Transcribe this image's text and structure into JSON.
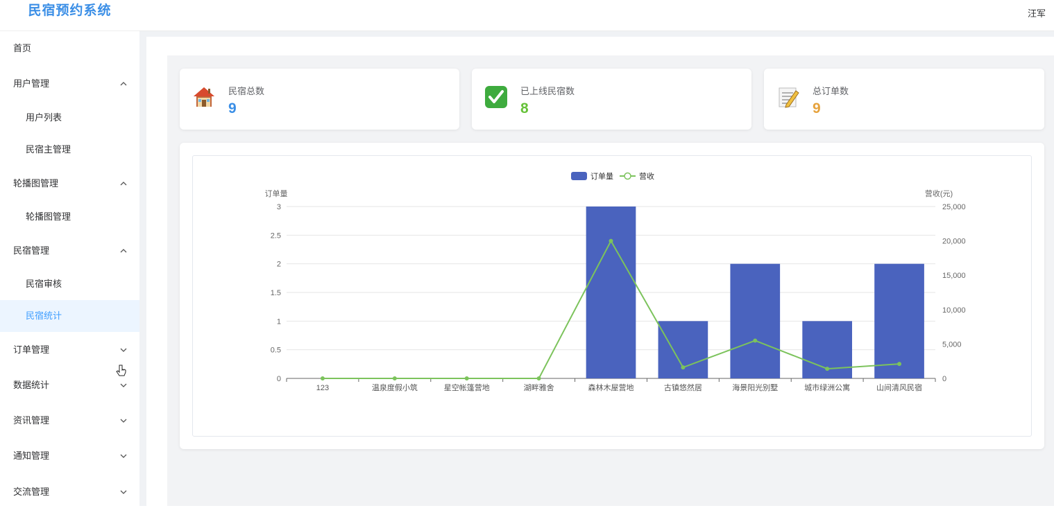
{
  "app": {
    "title": "民宿预约系统",
    "user": "汪军"
  },
  "sidebar": {
    "items": [
      {
        "label": "首页",
        "level": "top",
        "chevron": "none"
      },
      {
        "label": "用户管理",
        "level": "top",
        "chevron": "up"
      },
      {
        "label": "用户列表",
        "level": "sub"
      },
      {
        "label": "民宿主管理",
        "level": "sub"
      },
      {
        "label": "轮播图管理",
        "level": "top",
        "chevron": "up"
      },
      {
        "label": "轮播图管理",
        "level": "sub"
      },
      {
        "label": "民宿管理",
        "level": "top",
        "chevron": "up"
      },
      {
        "label": "民宿审核",
        "level": "sub"
      },
      {
        "label": "民宿统计",
        "level": "sub",
        "active": true
      },
      {
        "label": "订单管理",
        "level": "top",
        "chevron": "down"
      },
      {
        "label": "数据统计",
        "level": "top",
        "chevron": "down"
      },
      {
        "label": "资讯管理",
        "level": "top",
        "chevron": "down"
      },
      {
        "label": "通知管理",
        "level": "top",
        "chevron": "down"
      },
      {
        "label": "交流管理",
        "level": "top",
        "chevron": "down"
      }
    ]
  },
  "stats": [
    {
      "label": "民宿总数",
      "value": "9",
      "icon": "house-icon",
      "color": "#3a8ee6"
    },
    {
      "label": "已上线民宿数",
      "value": "8",
      "icon": "check-mark-icon",
      "color": "#67c23a"
    },
    {
      "label": "总订单数",
      "value": "9",
      "icon": "memo-icon",
      "color": "#e6a23c"
    }
  ],
  "chart_data": {
    "type": "bar",
    "categories": [
      "123",
      "温泉度假小筑",
      "星空帐篷营地",
      "湖畔雅舍",
      "森林木屋营地",
      "古镇悠然居",
      "海景阳光别墅",
      "城市绿洲公寓",
      "山间清风民宿"
    ],
    "series": [
      {
        "name": "订单量",
        "type": "bar",
        "axis": "left",
        "color": "#4a63be",
        "values": [
          0,
          0,
          0,
          0,
          3,
          1,
          2,
          1,
          2
        ]
      },
      {
        "name": "营收",
        "type": "line",
        "axis": "right",
        "color": "#7cc35c",
        "values": [
          0,
          0,
          0,
          0,
          20000,
          1600,
          5500,
          1400,
          2100
        ]
      }
    ],
    "ylabel": "订单量",
    "ylabel_right": "营收(元)",
    "ylim": [
      0,
      3
    ],
    "ylim_right": [
      0,
      25000
    ],
    "yticks": [
      "0",
      "0.5",
      "1",
      "1.5",
      "2",
      "2.5",
      "3"
    ],
    "yticks_right": [
      "0",
      "5,000",
      "10,000",
      "15,000",
      "20,000",
      "25,000"
    ],
    "legend": "top-center",
    "grid": true
  }
}
